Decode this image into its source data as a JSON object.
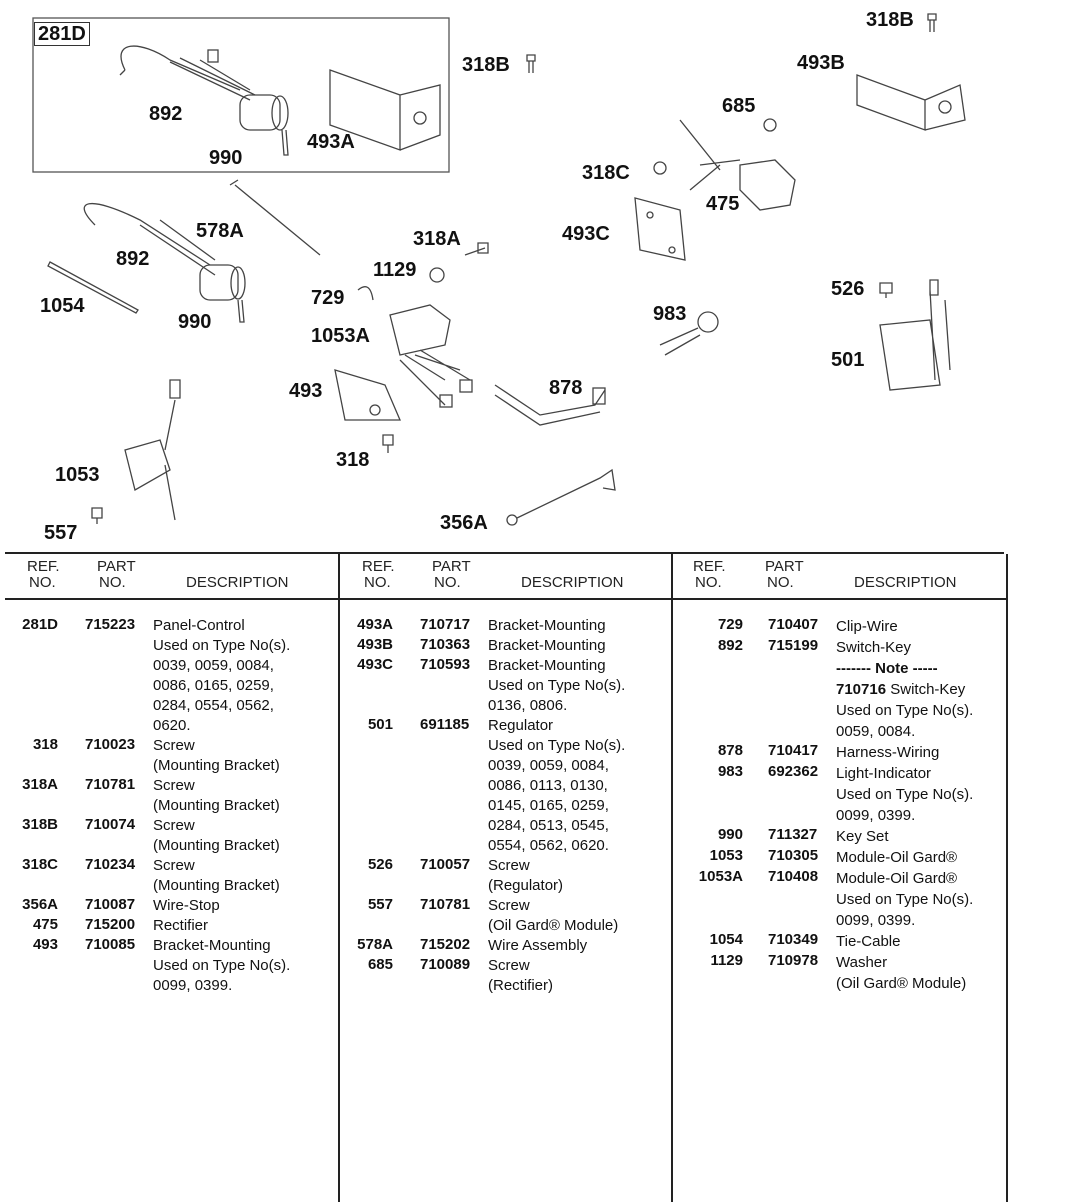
{
  "diagram": {
    "callouts": [
      "281D",
      "892",
      "990",
      "493A",
      "318B",
      "318B",
      "493B",
      "685",
      "318C",
      "475",
      "493C",
      "578A",
      "892",
      "1054",
      "990",
      "318A",
      "1129",
      "729",
      "1053A",
      "493",
      "878",
      "318",
      "983",
      "526",
      "501",
      "1053",
      "557",
      "356A"
    ]
  },
  "table": {
    "headers": {
      "ref_1": "REF.",
      "ref_2": "NO.",
      "part_1": "PART",
      "part_2": "NO.",
      "desc": "DESCRIPTION"
    },
    "columns": [
      [
        {
          "ref": "281D",
          "part": "715223",
          "lines": [
            "Panel-Control",
            "Used on Type No(s).",
            "0039, 0059, 0084,",
            "0086, 0165, 0259,",
            "0284, 0554, 0562,",
            "0620."
          ]
        },
        {
          "ref": "318",
          "part": "710023",
          "lines": [
            "Screw",
            "(Mounting Bracket)"
          ]
        },
        {
          "ref": "318A",
          "part": "710781",
          "lines": [
            "Screw",
            "(Mounting Bracket)"
          ]
        },
        {
          "ref": "318B",
          "part": "710074",
          "lines": [
            "Screw",
            "(Mounting Bracket)"
          ]
        },
        {
          "ref": "318C",
          "part": "710234",
          "lines": [
            "Screw",
            "(Mounting Bracket)"
          ]
        },
        {
          "ref": "356A",
          "part": "710087",
          "lines": [
            "Wire-Stop"
          ]
        },
        {
          "ref": "475",
          "part": "715200",
          "lines": [
            "Rectifier"
          ]
        },
        {
          "ref": "493",
          "part": "710085",
          "lines": [
            "Bracket-Mounting",
            "Used on Type No(s).",
            "0099, 0399."
          ]
        }
      ],
      [
        {
          "ref": "493A",
          "part": "710717",
          "lines": [
            "Bracket-Mounting"
          ]
        },
        {
          "ref": "493B",
          "part": "710363",
          "lines": [
            "Bracket-Mounting"
          ]
        },
        {
          "ref": "493C",
          "part": "710593",
          "lines": [
            "Bracket-Mounting",
            "Used on Type No(s).",
            "0136, 0806."
          ]
        },
        {
          "ref": "501",
          "part": "691185",
          "lines": [
            "Regulator",
            "Used on Type No(s).",
            "0039, 0059, 0084,",
            "0086, 0113, 0130,",
            "0145, 0165, 0259,",
            "0284, 0513, 0545,",
            "0554, 0562, 0620."
          ]
        },
        {
          "ref": "526",
          "part": "710057",
          "lines": [
            "Screw",
            "(Regulator)"
          ]
        },
        {
          "ref": "557",
          "part": "710781",
          "lines": [
            "Screw",
            "(Oil Gard® Module)"
          ]
        },
        {
          "ref": "578A",
          "part": "715202",
          "lines": [
            "Wire Assembly"
          ]
        },
        {
          "ref": "685",
          "part": "710089",
          "lines": [
            "Screw",
            "(Rectifier)"
          ]
        }
      ],
      [
        {
          "ref": "729",
          "part": "710407",
          "lines": [
            "Clip-Wire"
          ]
        },
        {
          "ref": "892",
          "part": "715199",
          "lines": [
            "Switch-Key"
          ],
          "note": {
            "heading": "------- Note -----",
            "part": "710716",
            "desc": "Switch-Key",
            "lines": [
              "Used on Type No(s).",
              "0059, 0084."
            ]
          }
        },
        {
          "ref": "878",
          "part": "710417",
          "lines": [
            "Harness-Wiring"
          ]
        },
        {
          "ref": "983",
          "part": "692362",
          "lines": [
            "Light-Indicator",
            "Used on Type No(s).",
            "0099, 0399."
          ]
        },
        {
          "ref": "990",
          "part": "711327",
          "lines": [
            "Key Set"
          ]
        },
        {
          "ref": "1053",
          "part": "710305",
          "lines": [
            "Module-Oil Gard®"
          ]
        },
        {
          "ref": "1053A",
          "part": "710408",
          "lines": [
            "Module-Oil Gard®",
            "Used on Type No(s).",
            "0099, 0399."
          ]
        },
        {
          "ref": "1054",
          "part": "710349",
          "lines": [
            "Tie-Cable"
          ]
        },
        {
          "ref": "1129",
          "part": "710978",
          "lines": [
            "Washer",
            "(Oil Gard® Module)"
          ]
        }
      ]
    ]
  }
}
